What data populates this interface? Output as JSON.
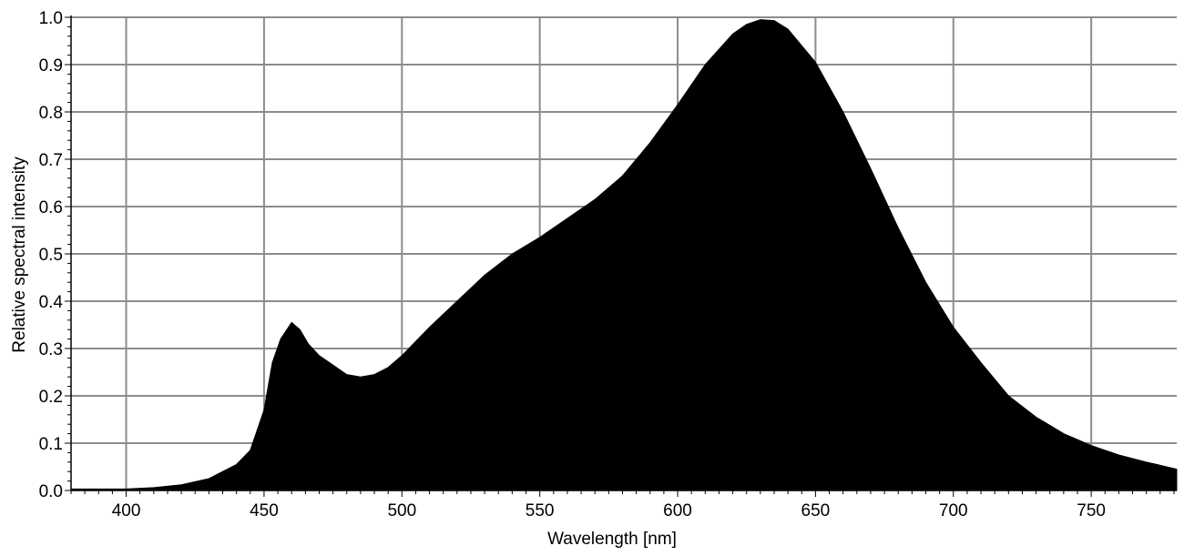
{
  "chart_data": {
    "type": "area",
    "title": "",
    "xlabel": "Wavelength [nm]",
    "ylabel": "Relative spectral intensity",
    "xlim": [
      380,
      781
    ],
    "ylim": [
      0,
      1.0
    ],
    "x_ticks": [
      400,
      450,
      500,
      550,
      600,
      650,
      700,
      750
    ],
    "y_ticks": [
      "0.0",
      "0.1",
      "0.2",
      "0.3",
      "0.4",
      "0.5",
      "0.6",
      "0.7",
      "0.8",
      "0.9",
      "1.0"
    ],
    "grid": true,
    "fill_color": "#000000",
    "grid_color": "#8c8c8c",
    "series": [
      {
        "x": [
          380,
          400,
          410,
          420,
          430,
          440,
          445,
          450,
          453,
          456,
          460,
          463,
          466,
          470,
          475,
          480,
          485,
          490,
          495,
          500,
          510,
          520,
          530,
          540,
          550,
          560,
          570,
          580,
          590,
          600,
          610,
          620,
          625,
          630,
          635,
          640,
          650,
          660,
          670,
          680,
          690,
          700,
          710,
          720,
          730,
          740,
          750,
          760,
          770,
          781
        ],
        "y": [
          0.003,
          0.003,
          0.006,
          0.012,
          0.025,
          0.055,
          0.085,
          0.17,
          0.27,
          0.32,
          0.355,
          0.34,
          0.31,
          0.285,
          0.265,
          0.245,
          0.24,
          0.245,
          0.26,
          0.285,
          0.345,
          0.4,
          0.455,
          0.5,
          0.535,
          0.575,
          0.615,
          0.665,
          0.735,
          0.815,
          0.9,
          0.965,
          0.985,
          0.995,
          0.993,
          0.975,
          0.905,
          0.8,
          0.68,
          0.555,
          0.44,
          0.345,
          0.27,
          0.2,
          0.155,
          0.12,
          0.095,
          0.075,
          0.06,
          0.045
        ]
      }
    ]
  }
}
